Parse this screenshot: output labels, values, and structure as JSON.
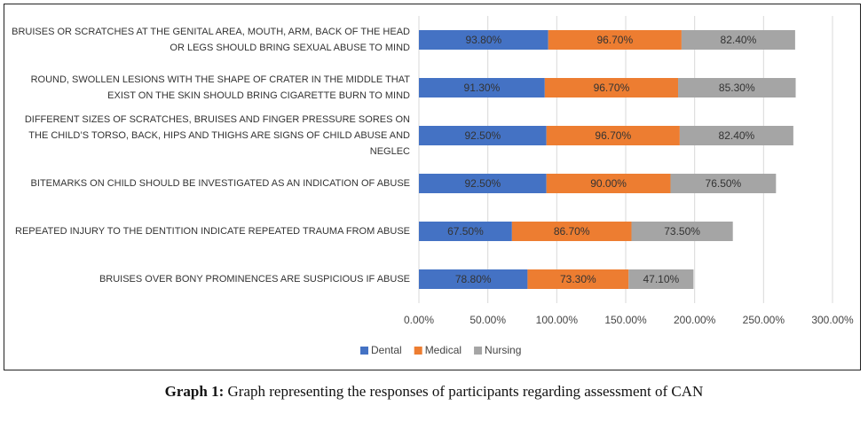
{
  "chart_data": {
    "type": "stacked-bar-horizontal",
    "categories": [
      "BRUISES OR SCRATCHES AT THE GENITAL AREA, MOUTH, ARM, BACK OF THE HEAD OR LEGS SHOULD BRING SEXUAL ABUSE TO MIND",
      "ROUND, SWOLLEN LESIONS WITH THE SHAPE OF CRATER IN THE MIDDLE THAT EXIST ON THE SKIN SHOULD BRING CIGARETTE BURN TO MIND",
      "DIFFERENT SIZES OF SCRATCHES, BRUISES AND FINGER PRESSURE SORES ON THE CHILD’S TORSO, BACK, HIPS AND THIGHS ARE SIGNS OF CHILD ABUSE AND NEGLEC",
      "BITEMARKS ON CHILD SHOULD BE INVESTIGATED AS AN INDICATION OF ABUSE",
      "REPEATED INJURY TO THE DENTITION INDICATE REPEATED TRAUMA FROM ABUSE",
      "BRUISES OVER BONY PROMINENCES ARE SUSPICIOUS IF ABUSE"
    ],
    "series": [
      {
        "name": "Dental",
        "color": "#4472c4",
        "values": [
          93.8,
          91.3,
          92.5,
          92.5,
          67.5,
          78.8
        ],
        "value_labels": [
          "93.80%",
          "91.30%",
          "92.50%",
          "92.50%",
          "67.50%",
          "78.80%"
        ]
      },
      {
        "name": "Medical",
        "color": "#ed7d31",
        "values": [
          96.7,
          96.7,
          96.7,
          90.0,
          86.7,
          73.3
        ],
        "value_labels": [
          "96.70%",
          "96.70%",
          "96.70%",
          "90.00%",
          "86.70%",
          "73.30%"
        ]
      },
      {
        "name": "Nursing",
        "color": "#a5a5a5",
        "values": [
          82.4,
          85.3,
          82.4,
          76.5,
          73.5,
          47.1
        ],
        "value_labels": [
          "82.40%",
          "85.30%",
          "82.40%",
          "76.50%",
          "73.50%",
          "47.10%"
        ]
      }
    ],
    "xlim": [
      0,
      300
    ],
    "xticks": [
      {
        "value": 0,
        "label": "0.00%"
      },
      {
        "value": 50,
        "label": "50.00%"
      },
      {
        "value": 100,
        "label": "100.00%"
      },
      {
        "value": 150,
        "label": "150.00%"
      },
      {
        "value": 200,
        "label": "200.00%"
      },
      {
        "value": 250,
        "label": "250.00%"
      },
      {
        "value": 300,
        "label": "300.00%"
      }
    ],
    "grid": true,
    "legend": "bottom",
    "caption": {
      "label": "Graph 1:",
      "text": "Graph representing the responses of participants regarding assessment of CAN"
    }
  }
}
